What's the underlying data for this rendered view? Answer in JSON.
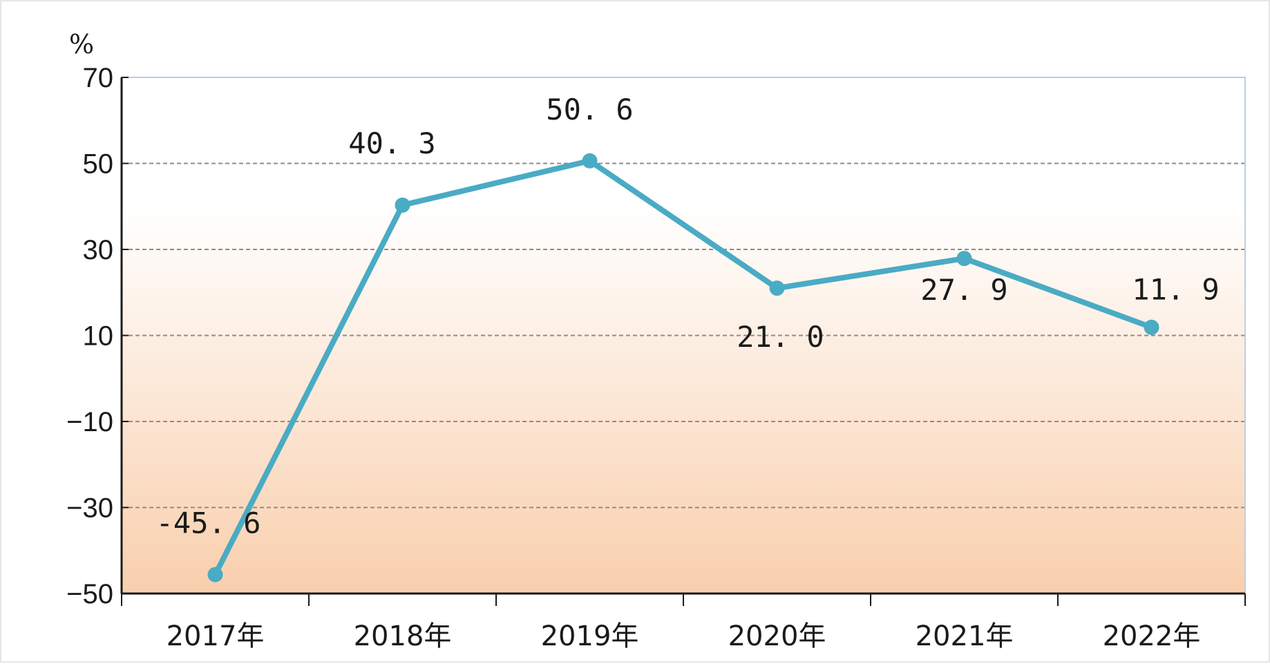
{
  "chart_data": {
    "type": "line",
    "categories": [
      "2017年",
      "2018年",
      "2019年",
      "2020年",
      "2021年",
      "2022年"
    ],
    "series": [
      {
        "values": [
          -45.6,
          40.3,
          50.6,
          21.0,
          27.9,
          11.9
        ],
        "labels": [
          "-45. 6",
          "40. 3",
          "50. 6",
          "21. 0",
          "27. 9",
          "11. 9"
        ]
      }
    ],
    "ylabel": "%",
    "ylim": [
      -50,
      70
    ],
    "yticks": [
      70,
      50,
      30,
      10,
      -10,
      -30,
      -50
    ],
    "ytick_labels": [
      "70",
      "50",
      "30",
      "10",
      "−10",
      "−30",
      "−50"
    ],
    "grid": true,
    "legend": "none",
    "title": "",
    "xlabel": "",
    "colors": {
      "line": "#4aabc4",
      "background_top": "#ffffff",
      "background_bottom": "#f9cfad",
      "grid": "#8c8c8c",
      "axis": "#1a1a1a",
      "frame": "#b9cfe6"
    }
  }
}
